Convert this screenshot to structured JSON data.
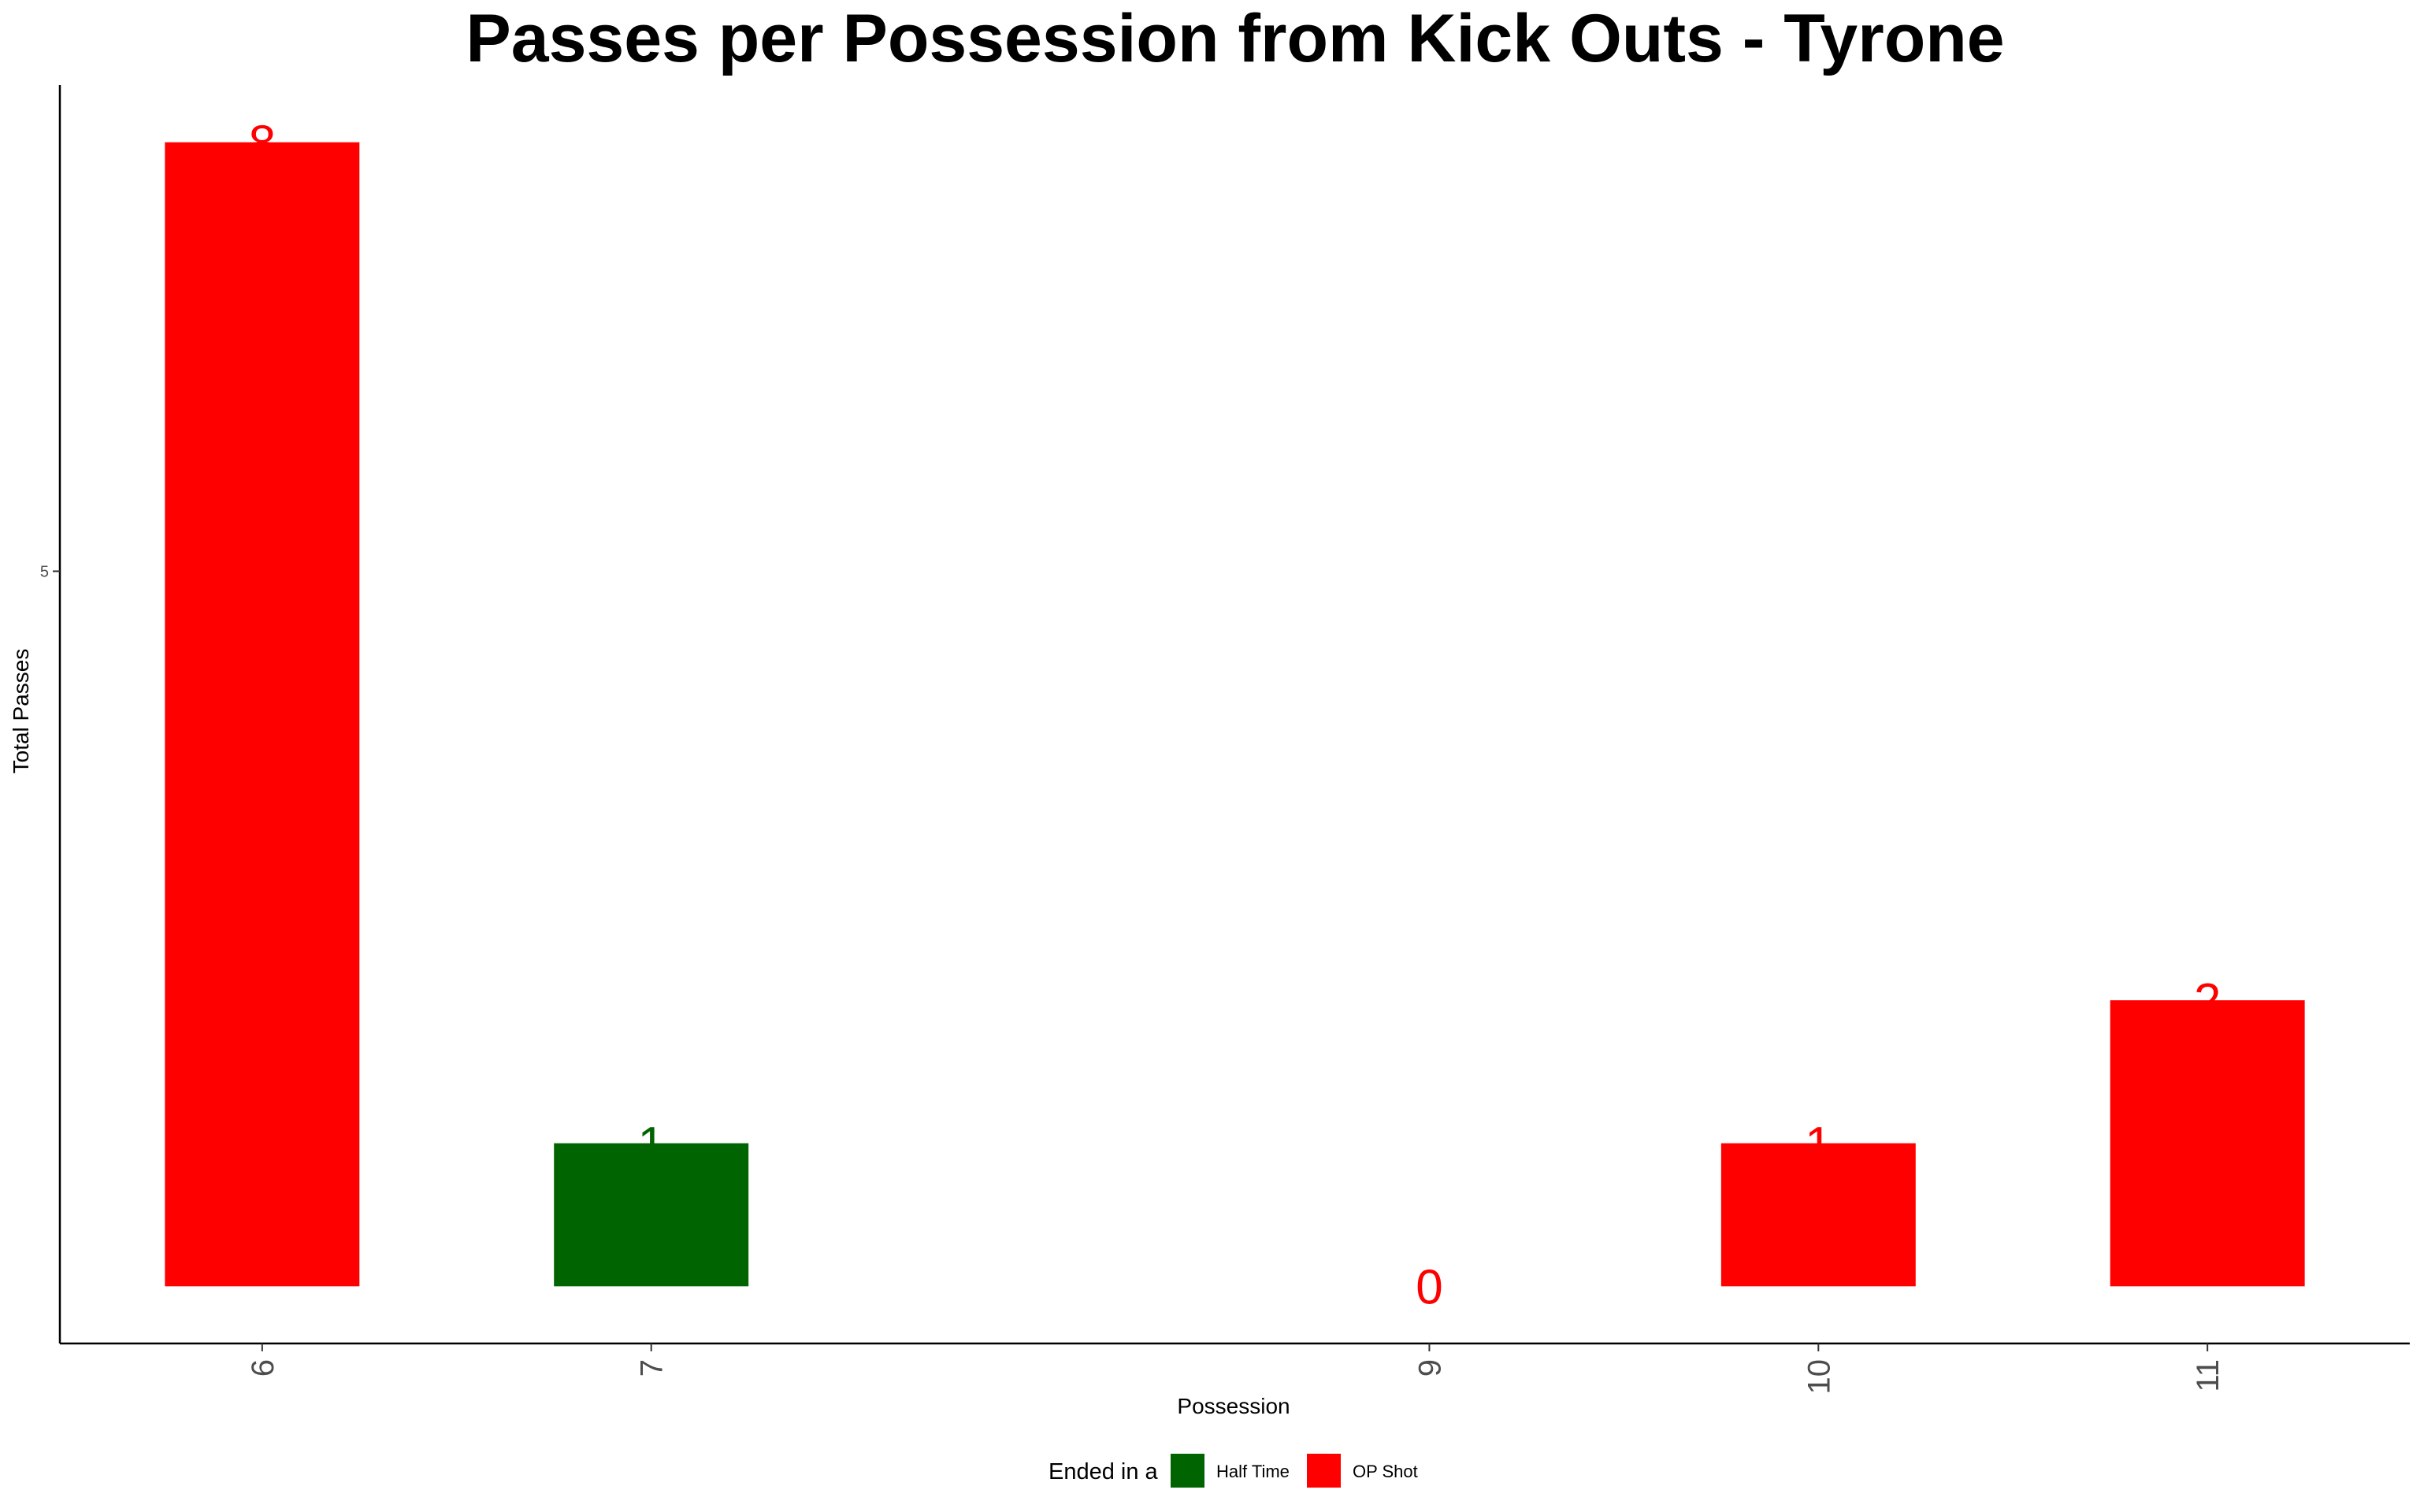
{
  "chart_data": {
    "type": "bar",
    "title": "Passes per Possession from Kick Outs - Tyrone",
    "xlabel": "Possession",
    "ylabel": "Total Passes",
    "x": [
      6,
      7,
      9,
      10,
      11
    ],
    "x_ticks": [
      "6",
      "7",
      "9",
      "10",
      "11"
    ],
    "xlim": [
      5.48,
      11.52
    ],
    "values": [
      8,
      1,
      0,
      1,
      2
    ],
    "labels": [
      "8",
      "1",
      "0",
      "1",
      "2"
    ],
    "ended_in": [
      "OP Shot",
      "Half Time",
      "OP Shot",
      "OP Shot",
      "OP Shot"
    ],
    "y_ticks": [
      5
    ],
    "ylim": [
      -0.4,
      8.4
    ],
    "grid": false,
    "legend": {
      "title": "Ended in a",
      "position": "bottom",
      "entries": [
        {
          "label": "Half Time",
          "color": "#006400"
        },
        {
          "label": "OP Shot",
          "color": "#ff0000"
        }
      ]
    }
  }
}
